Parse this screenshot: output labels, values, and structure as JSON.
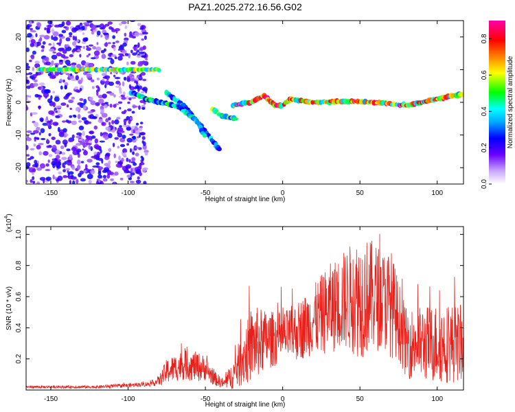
{
  "title": "PAZ1.2025.272.16.56.G02",
  "chart_data": [
    {
      "type": "heatmap",
      "name": "spectrogram",
      "xlabel": "Height of straight line (km)",
      "ylabel": "Frequency (Hz)",
      "xlim": [
        -166,
        117
      ],
      "ylim": [
        -25,
        25
      ],
      "xticks": [
        -150,
        -100,
        -50,
        0,
        50,
        100
      ],
      "yticks": [
        -20,
        -10,
        0,
        10,
        20
      ],
      "colorbar": {
        "label": "Normalized spectral amplitude",
        "range": [
          0.0,
          0.9
        ],
        "ticks": [
          0.0,
          0.2,
          0.4,
          0.6,
          0.8
        ],
        "colormap": "rainbow-purple-to-magenta"
      },
      "features": [
        {
          "desc": "scatter noise",
          "x_range": [
            -166,
            -88
          ],
          "y_range": [
            -25,
            25
          ],
          "amplitude": 0.1
        },
        {
          "desc": "10 Hz line",
          "x_range": [
            -158,
            -80
          ],
          "y": 10,
          "amplitude": 0.55
        },
        {
          "desc": "descending branch A",
          "points": [
            [
              -98,
              3
            ],
            [
              -88,
              1
            ],
            [
              -70,
              -1
            ],
            [
              -65,
              -2
            ]
          ],
          "amplitude": 0.35
        },
        {
          "desc": "descending branch B",
          "points": [
            [
              -75,
              3
            ],
            [
              -62,
              -2
            ],
            [
              -45,
              -12
            ],
            [
              -40,
              -15
            ]
          ],
          "amplitude": 0.3
        },
        {
          "desc": "descending branch C",
          "points": [
            [
              -68,
              -1
            ],
            [
              -55,
              -6
            ],
            [
              -50,
              -11
            ]
          ],
          "amplitude": 0.3
        },
        {
          "desc": "descending branch D",
          "points": [
            [
              -45,
              -2
            ],
            [
              -40,
              -4
            ],
            [
              -30,
              -5
            ]
          ],
          "amplitude": 0.4
        },
        {
          "desc": "main trace",
          "points": [
            [
              -32,
              -1
            ],
            [
              -20,
              0
            ],
            [
              -12,
              2
            ],
            [
              -5,
              -1
            ],
            [
              0,
              -1
            ],
            [
              5,
              1
            ],
            [
              20,
              0
            ],
            [
              40,
              0.3
            ],
            [
              60,
              0
            ],
            [
              80,
              -1
            ],
            [
              90,
              0
            ],
            [
              100,
              1
            ],
            [
              110,
              2
            ],
            [
              117,
              2.5
            ]
          ],
          "amplitude": 0.65
        }
      ]
    },
    {
      "type": "line",
      "name": "snr",
      "xlabel": "Height of straight line (km)",
      "ylabel": "SNR (10 * v/v)",
      "y_scale_label": "(x10",
      "y_scale_exp": "4",
      "xlim": [
        -166,
        117
      ],
      "ylim": [
        0.0,
        1.05
      ],
      "xticks": [
        -150,
        -100,
        -50,
        0,
        50,
        100
      ],
      "yticks": [
        0.2,
        0.4,
        0.6,
        0.8,
        1.0
      ],
      "ytick_labels": [
        "0.2",
        "0.4",
        "0.6",
        "0.8",
        "1.0"
      ],
      "color": "#e8201a",
      "envelope": {
        "x": [
          -166,
          -120,
          -100,
          -85,
          -80,
          -75,
          -65,
          -55,
          -50,
          -45,
          -38,
          -32,
          -25,
          -18,
          -10,
          0,
          10,
          20,
          30,
          40,
          50,
          60,
          65,
          70,
          75,
          80,
          90,
          100,
          110,
          117
        ],
        "mean": [
          0.02,
          0.02,
          0.03,
          0.04,
          0.06,
          0.12,
          0.16,
          0.15,
          0.14,
          0.08,
          0.04,
          0.1,
          0.22,
          0.3,
          0.32,
          0.34,
          0.38,
          0.45,
          0.52,
          0.58,
          0.6,
          0.6,
          0.58,
          0.56,
          0.45,
          0.3,
          0.3,
          0.3,
          0.3,
          0.3
        ],
        "amplitude": [
          0.005,
          0.006,
          0.008,
          0.01,
          0.02,
          0.05,
          0.06,
          0.06,
          0.05,
          0.03,
          0.02,
          0.06,
          0.12,
          0.15,
          0.12,
          0.1,
          0.12,
          0.14,
          0.18,
          0.2,
          0.25,
          0.22,
          0.2,
          0.22,
          0.16,
          0.14,
          0.15,
          0.16,
          0.16,
          0.15
        ]
      }
    }
  ]
}
